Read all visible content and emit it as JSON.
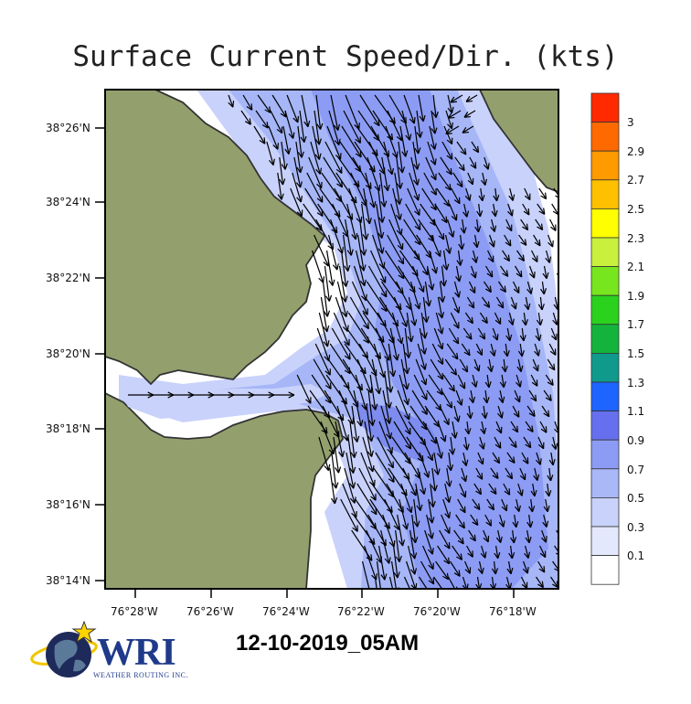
{
  "title": "Surface Current Speed/Dir. (kts)",
  "datetime": "12-10-2019_05AM",
  "logo": {
    "text": "WRI",
    "subtitle": "WEATHER ROUTING INC."
  },
  "axes": {
    "y_ticks": [
      "38°26'N",
      "38°24'N",
      "38°22'N",
      "38°20'N",
      "38°18'N",
      "38°16'N",
      "38°14'N"
    ],
    "x_ticks": [
      "76°28'W",
      "76°26'W",
      "76°24'W",
      "76°22'W",
      "76°20'W",
      "76°18'W"
    ]
  },
  "colorbar": {
    "labels": [
      "3",
      "2.9",
      "2.7",
      "2.5",
      "2.3",
      "2.1",
      "1.9",
      "1.7",
      "1.5",
      "1.3",
      "1.1",
      "0.9",
      "0.7",
      "0.5",
      "0.3",
      "0.1"
    ],
    "colors": [
      "#ff2a00",
      "#ff6a00",
      "#ff9a00",
      "#ffc000",
      "#ffff00",
      "#c8f03c",
      "#78e61e",
      "#2ad21e",
      "#14b43c",
      "#0f9a8c",
      "#1e64ff",
      "#6670ee",
      "#8c9cf4",
      "#aab8f8",
      "#c8d2fa",
      "#e4e8fc",
      "#ffffff"
    ]
  },
  "colors": {
    "land": "#93a06e",
    "water_low": "#c9d2fb",
    "water_mid": "#a6b6f7",
    "water_high": "#7d8cee",
    "arrow": "#000000"
  },
  "chart_data": {
    "type": "other",
    "title": "Surface Current Speed/Dir. (kts)",
    "quantity": "surface current speed and direction",
    "units": "kts",
    "lat_range": [
      "38°14'N",
      "38°26'N"
    ],
    "lon_range": [
      "76°28'W",
      "76°18'W"
    ],
    "speed_range_shown": [
      0.1,
      0.9
    ],
    "dominant_direction": "south-southeast"
  }
}
